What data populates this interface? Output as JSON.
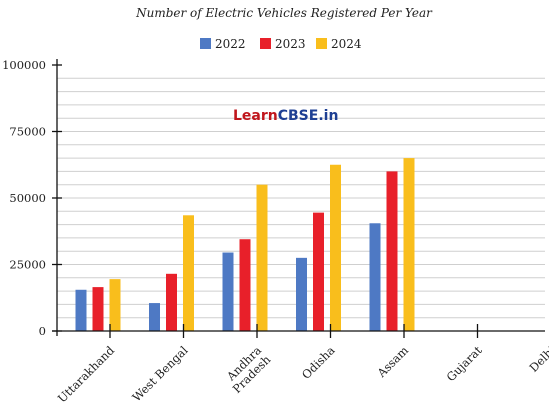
{
  "chart_data": {
    "type": "bar",
    "title": "Number of Electric Vehicles Registered Per Year",
    "categories": [
      "Uttarakhand",
      "West Bengal",
      "Andhra Pradesh",
      "Odisha",
      "Assam",
      "Gujarat",
      "Delhi"
    ],
    "category_lines": [
      [
        "Uttarakhand"
      ],
      [
        "West Bengal"
      ],
      [
        "Andhra",
        "Pradesh"
      ],
      [
        "Odisha"
      ],
      [
        "Assam"
      ],
      [
        "Gujarat"
      ],
      [
        "Delhi"
      ]
    ],
    "series": [
      {
        "name": "2022",
        "color": "#4e79c4",
        "values": [
          15500,
          10500,
          29500,
          27500,
          40500,
          null,
          null
        ]
      },
      {
        "name": "2023",
        "color": "#e8202a",
        "values": [
          16500,
          21500,
          34500,
          44500,
          60000,
          null,
          null
        ]
      },
      {
        "name": "2024",
        "color": "#f9be1c",
        "values": [
          19500,
          43500,
          55000,
          62500,
          65000,
          null,
          null
        ]
      }
    ],
    "ylim": [
      0,
      100000
    ],
    "yticks": [
      0,
      25000,
      50000,
      75000,
      100000
    ],
    "grid": true,
    "legend_position": "top-center",
    "xlabel": "",
    "ylabel": ""
  },
  "watermark": {
    "part1": "Learn",
    "part2": "CBSE.in",
    "color1": "#c0161c",
    "color2": "#1e3f93"
  }
}
